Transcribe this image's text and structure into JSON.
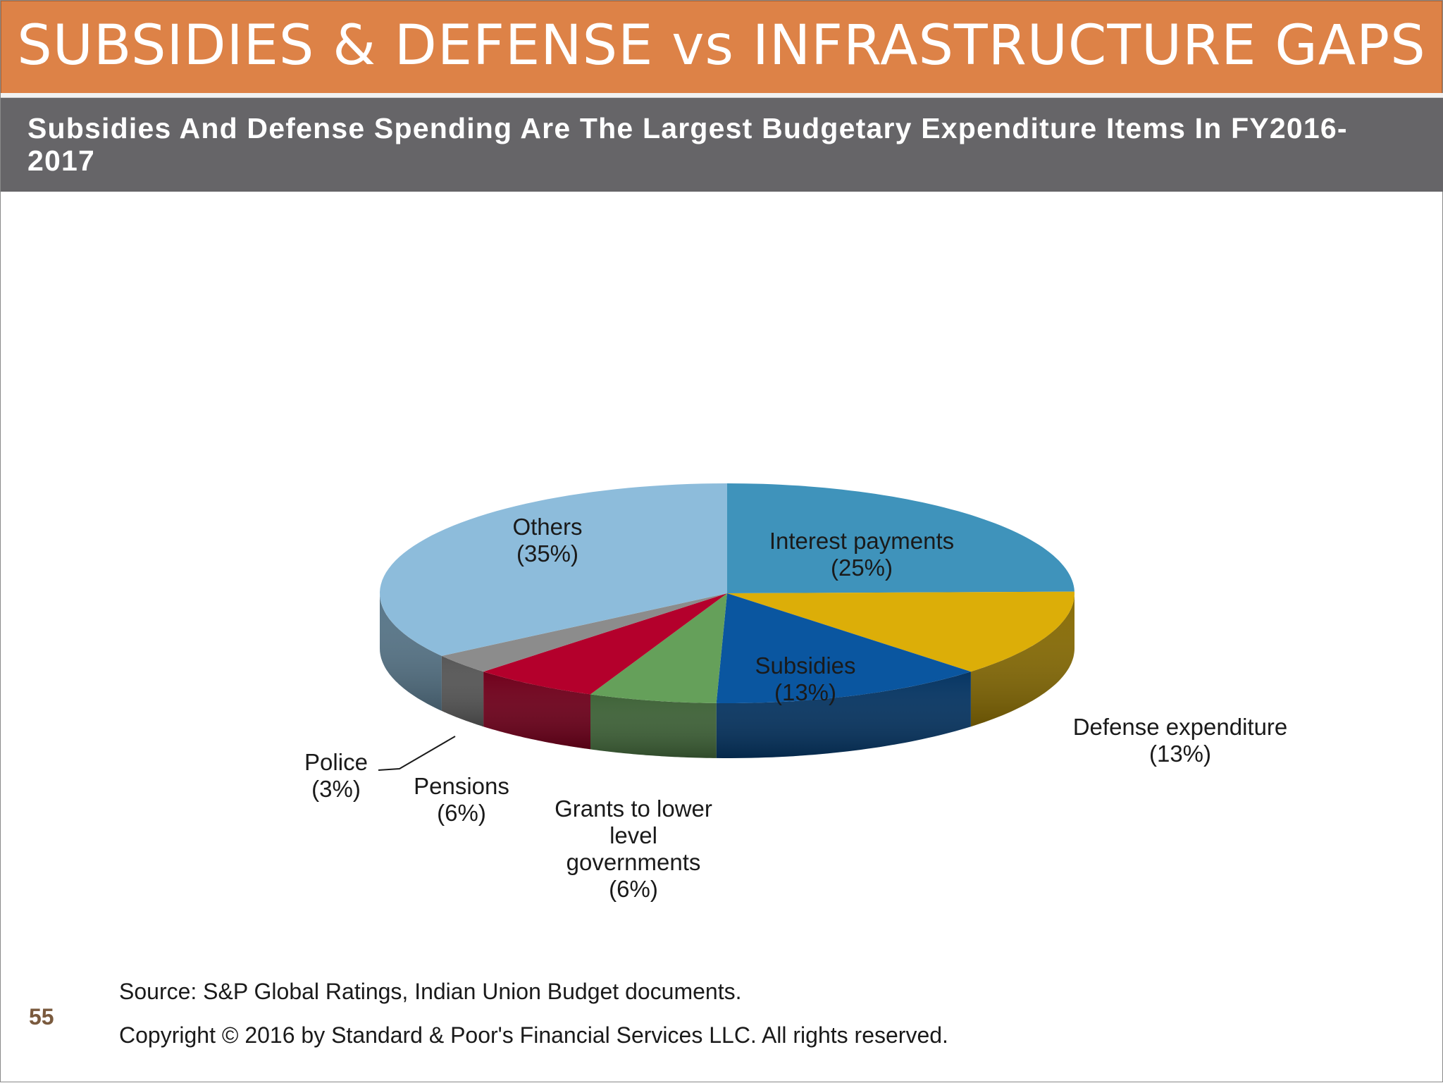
{
  "slide": {
    "title": "SUBSIDIES & DEFENSE vs INFRASTRUCTURE GAPS",
    "subtitle": "Subsidies And Defense Spending Are The Largest Budgetary Expenditure Items In FY2016-2017",
    "source": "Source: S&P Global Ratings, Indian Union Budget documents.",
    "copyright": "Copyright © 2016 by Standard & Poor's Financial Services LLC. All rights reserved.",
    "page_number": "55"
  },
  "chart_data": {
    "type": "pie",
    "title": "",
    "categories": [
      "Interest payments",
      "Defense expenditure",
      "Subsidies",
      "Grants to lower level governments",
      "Pensions",
      "Police",
      "Others"
    ],
    "values": [
      25,
      13,
      13,
      6,
      6,
      3,
      35
    ],
    "unit": "%",
    "slices": [
      {
        "label": "Interest payments",
        "value": 25,
        "label_lines": [
          "Interest payments",
          "(25%)"
        ],
        "color": "#3f93bb"
      },
      {
        "label": "Defense expenditure",
        "value": 13,
        "label_lines": [
          "Defense expenditure",
          "(13%)"
        ],
        "color": "#dcae08"
      },
      {
        "label": "Subsidies",
        "value": 13,
        "label_lines": [
          "Subsidies",
          "(13%)"
        ],
        "color": "#0a56a0"
      },
      {
        "label": "Grants to lower level governments",
        "value": 6,
        "label_lines": [
          "Grants to lower",
          "level",
          "governments",
          "(6%)"
        ],
        "color": "#65a05a"
      },
      {
        "label": "Pensions",
        "value": 6,
        "label_lines": [
          "Pensions",
          "(6%)"
        ],
        "color": "#b4002c"
      },
      {
        "label": "Police",
        "value": 3,
        "label_lines": [
          "Police",
          "(3%)"
        ],
        "color": "#8c8c8c"
      },
      {
        "label": "Others",
        "value": 35,
        "label_lines": [
          "Others",
          "(35%)"
        ],
        "color": "#8dbcdb"
      }
    ],
    "legend": "none",
    "style": "3d-pie"
  }
}
